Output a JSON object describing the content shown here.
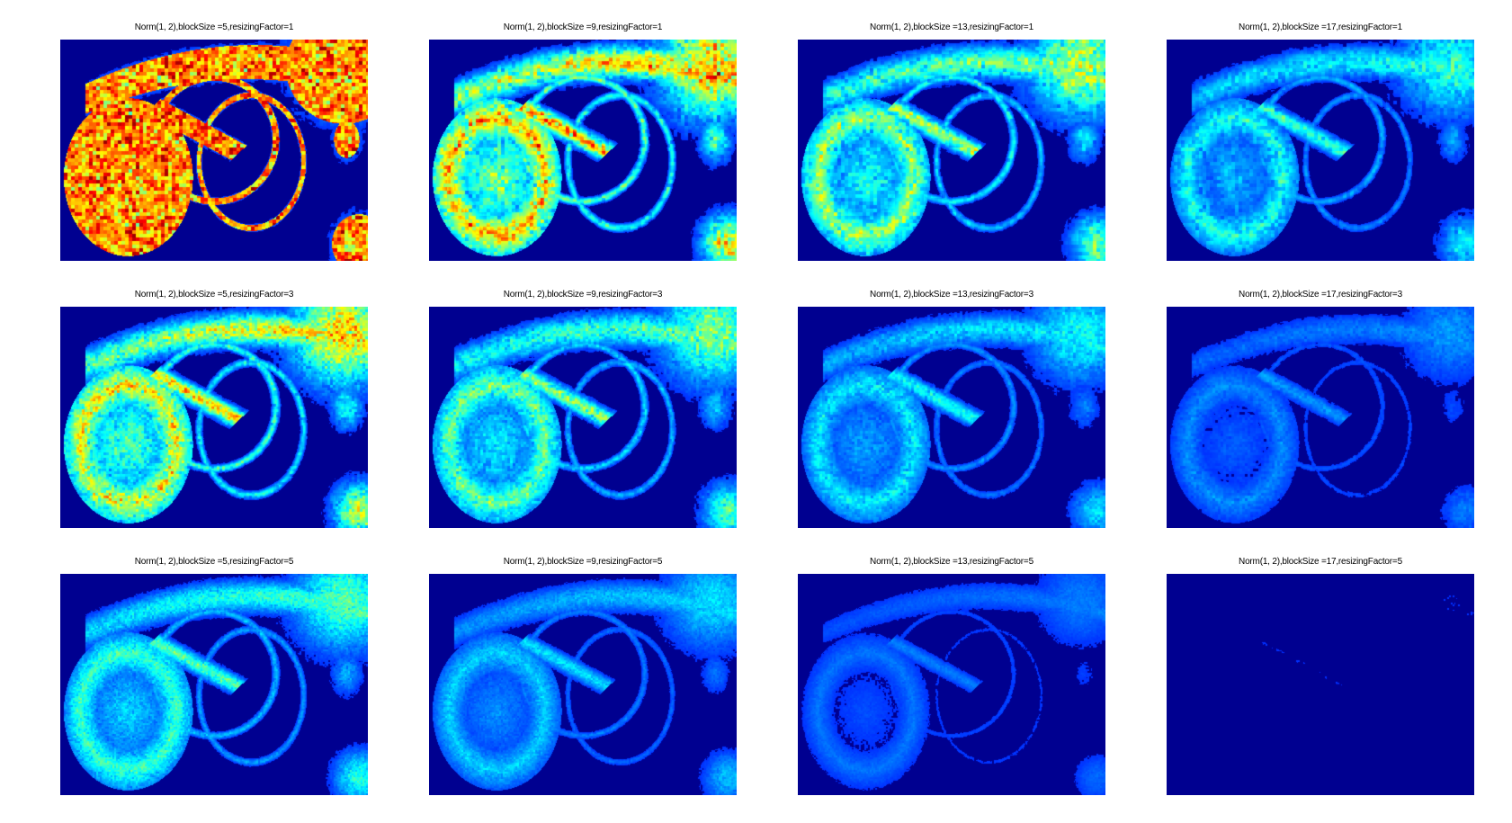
{
  "figure": {
    "colormap": "jet",
    "background_color": "#000090",
    "panels": [
      {
        "title": "Norm(1, 2),blockSize =5,resizingFactor=1",
        "blockSize": 5,
        "resizingFactor": 1
      },
      {
        "title": "Norm(1, 2),blockSize =9,resizingFactor=1",
        "blockSize": 9,
        "resizingFactor": 1
      },
      {
        "title": "Norm(1, 2),blockSize =13,resizingFactor=1",
        "blockSize": 13,
        "resizingFactor": 1
      },
      {
        "title": "Norm(1, 2),blockSize =17,resizingFactor=1",
        "blockSize": 17,
        "resizingFactor": 1
      },
      {
        "title": "Norm(1, 2),blockSize =5,resizingFactor=3",
        "blockSize": 5,
        "resizingFactor": 3
      },
      {
        "title": "Norm(1, 2),blockSize =9,resizingFactor=3",
        "blockSize": 9,
        "resizingFactor": 3
      },
      {
        "title": "Norm(1, 2),blockSize =13,resizingFactor=3",
        "blockSize": 13,
        "resizingFactor": 3
      },
      {
        "title": "Norm(1, 2),blockSize =17,resizingFactor=3",
        "blockSize": 17,
        "resizingFactor": 3
      },
      {
        "title": "Norm(1, 2),blockSize =5,resizingFactor=5",
        "blockSize": 5,
        "resizingFactor": 5
      },
      {
        "title": "Norm(1, 2),blockSize =9,resizingFactor=5",
        "blockSize": 9,
        "resizingFactor": 5
      },
      {
        "title": "Norm(1, 2),blockSize =13,resizingFactor=5",
        "blockSize": 13,
        "resizingFactor": 5
      },
      {
        "title": "Norm(1, 2),blockSize =17,resizingFactor=5",
        "blockSize": 17,
        "resizingFactor": 5
      }
    ]
  }
}
